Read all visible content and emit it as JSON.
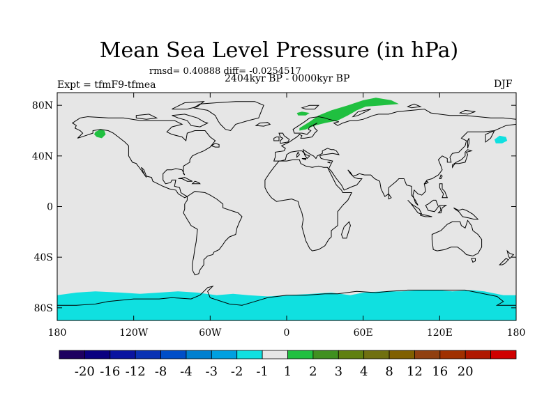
{
  "title": "Mean Sea Level Pressure (in hPa)",
  "stats_text": "rmsd= 0.40888 diff= -0.0254517",
  "experiment_text": "Expt = tfmF9-tfmea",
  "period_text": "2404kyr BP - 0000kyr BP",
  "season_text": "DJF",
  "map": {
    "projection": "cylindrical-equidistant",
    "lon_range": [
      -180,
      180
    ],
    "lat_range": [
      -90,
      90
    ],
    "background_color": "#e6e6e6",
    "coastline_color": "#000000",
    "lat_ticks": [
      {
        "lat": 80,
        "label": "80N"
      },
      {
        "lat": 40,
        "label": "40N"
      },
      {
        "lat": 0,
        "label": "0"
      },
      {
        "lat": -40,
        "label": "40S"
      },
      {
        "lat": -80,
        "label": "80S"
      }
    ],
    "lon_ticks": [
      {
        "lon": -180,
        "label": "180"
      },
      {
        "lon": -120,
        "label": "120W"
      },
      {
        "lon": -60,
        "label": "60W"
      },
      {
        "lon": 0,
        "label": "0"
      },
      {
        "lon": 60,
        "label": "60E"
      },
      {
        "lon": 120,
        "label": "120E"
      },
      {
        "lon": 180,
        "label": "180"
      }
    ]
  },
  "anomaly_regions": [
    {
      "name": "scandinavia-siberia-positive",
      "category": "1 to 2",
      "color": "#20c040",
      "polygon": [
        [
          10,
          62
        ],
        [
          18,
          67
        ],
        [
          25,
          72
        ],
        [
          35,
          76
        ],
        [
          48,
          80
        ],
        [
          60,
          84
        ],
        [
          70,
          86
        ],
        [
          82,
          84
        ],
        [
          88,
          81
        ],
        [
          75,
          80
        ],
        [
          62,
          79
        ],
        [
          55,
          76
        ],
        [
          48,
          72
        ],
        [
          40,
          68
        ],
        [
          30,
          66
        ],
        [
          22,
          64
        ],
        [
          15,
          61
        ],
        [
          10,
          60
        ]
      ]
    },
    {
      "name": "iceland-positive",
      "category": "1 to 2",
      "color": "#20c040",
      "polygon": [
        [
          8,
          74
        ],
        [
          12,
          75
        ],
        [
          18,
          74
        ],
        [
          15,
          72
        ],
        [
          9,
          72
        ]
      ]
    },
    {
      "name": "gulf-of-alaska-positive",
      "category": "1 to 2",
      "color": "#20c040",
      "polygon": [
        [
          -150,
          59
        ],
        [
          -146,
          61
        ],
        [
          -143,
          60
        ],
        [
          -142,
          57
        ],
        [
          -145,
          54
        ],
        [
          -149,
          55
        ],
        [
          -151,
          57
        ]
      ]
    },
    {
      "name": "north-pacific-negative",
      "category": "-2 to -1",
      "color": "#10e0e0",
      "polygon": [
        [
          163,
          53
        ],
        [
          167,
          56
        ],
        [
          172,
          55
        ],
        [
          173,
          52
        ],
        [
          169,
          50
        ],
        [
          164,
          50
        ]
      ]
    },
    {
      "name": "southern-ocean-negative",
      "category": "-2 to -1",
      "color": "#10e0e0",
      "polygon": [
        [
          -180,
          -90
        ],
        [
          -180,
          -70
        ],
        [
          -165,
          -68
        ],
        [
          -150,
          -67
        ],
        [
          -130,
          -68
        ],
        [
          -115,
          -69
        ],
        [
          -100,
          -68
        ],
        [
          -85,
          -67
        ],
        [
          -70,
          -68
        ],
        [
          -55,
          -70
        ],
        [
          -42,
          -69
        ],
        [
          -30,
          -70
        ],
        [
          -15,
          -71
        ],
        [
          0,
          -70
        ],
        [
          20,
          -69
        ],
        [
          35,
          -68
        ],
        [
          50,
          -70
        ],
        [
          60,
          -68
        ],
        [
          75,
          -67
        ],
        [
          90,
          -67
        ],
        [
          105,
          -66
        ],
        [
          118,
          -66
        ],
        [
          130,
          -67
        ],
        [
          145,
          -66
        ],
        [
          155,
          -67
        ],
        [
          170,
          -70
        ],
        [
          180,
          -70
        ],
        [
          180,
          -90
        ]
      ]
    }
  ],
  "colorbar": {
    "colors": [
      "#1e0060",
      "#0a0080",
      "#0a14a0",
      "#0a32b4",
      "#004ec8",
      "#0080d0",
      "#00a0e0",
      "#10e0e0",
      "#e6e6e6",
      "#20c040",
      "#409020",
      "#608010",
      "#707010",
      "#806000",
      "#904010",
      "#a03000",
      "#b01800",
      "#d00000"
    ],
    "labels": [
      "-20",
      "-16",
      "-12",
      "-8",
      "-4",
      "-3",
      "-2",
      "-1",
      "1",
      "2",
      "3",
      "4",
      "8",
      "12",
      "16",
      "20"
    ]
  }
}
